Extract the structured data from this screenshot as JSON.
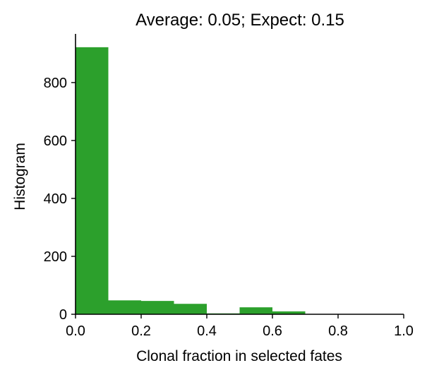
{
  "chart_data": {
    "type": "bar",
    "title": "Average: 0.05;   Expect: 0.15",
    "xlabel": "Clonal fraction in selected fates",
    "ylabel": "Histogram",
    "bins": [
      {
        "x0": 0.0,
        "x1": 0.1,
        "value": 922
      },
      {
        "x0": 0.1,
        "x1": 0.2,
        "value": 48
      },
      {
        "x0": 0.2,
        "x1": 0.3,
        "value": 46
      },
      {
        "x0": 0.3,
        "x1": 0.4,
        "value": 36
      },
      {
        "x0": 0.4,
        "x1": 0.5,
        "value": 3
      },
      {
        "x0": 0.5,
        "x1": 0.6,
        "value": 24
      },
      {
        "x0": 0.6,
        "x1": 0.7,
        "value": 10
      },
      {
        "x0": 0.7,
        "x1": 0.8,
        "value": 0
      },
      {
        "x0": 0.8,
        "x1": 0.9,
        "value": 0
      },
      {
        "x0": 0.9,
        "x1": 1.0,
        "value": 0
      }
    ],
    "xlim": [
      0.0,
      1.0
    ],
    "ylim": [
      0,
      968
    ],
    "xticks": [
      "0.0",
      "0.2",
      "0.4",
      "0.6",
      "0.8",
      "1.0"
    ],
    "yticks": [
      "0",
      "200",
      "400",
      "600",
      "800"
    ],
    "bar_color": "#2ca02c",
    "grid": false,
    "legend": "none"
  }
}
